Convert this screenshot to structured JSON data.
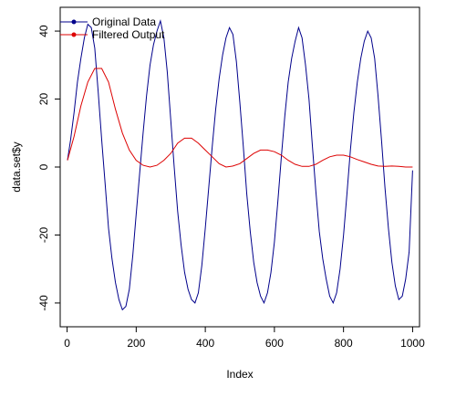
{
  "chart_data": {
    "type": "line",
    "title": "",
    "xlabel": "Index",
    "ylabel": "data.set$y",
    "xlim": [
      -20,
      1020
    ],
    "ylim": [
      -47,
      47
    ],
    "x_ticks": [
      0,
      200,
      400,
      600,
      800,
      1000
    ],
    "y_ticks": [
      -40,
      -20,
      0,
      20,
      40
    ],
    "legend_position": "top-left",
    "grid": false,
    "series": [
      {
        "name": "Original Data",
        "color": "#00008B",
        "x": [
          1,
          10,
          20,
          30,
          40,
          50,
          60,
          70,
          80,
          90,
          100,
          110,
          120,
          130,
          140,
          150,
          160,
          170,
          180,
          190,
          200,
          210,
          220,
          230,
          240,
          250,
          260,
          270,
          280,
          290,
          300,
          310,
          320,
          330,
          340,
          350,
          360,
          370,
          380,
          390,
          400,
          410,
          420,
          430,
          440,
          450,
          460,
          470,
          480,
          490,
          500,
          510,
          520,
          530,
          540,
          550,
          560,
          570,
          580,
          590,
          600,
          610,
          620,
          630,
          640,
          650,
          660,
          670,
          680,
          690,
          700,
          710,
          720,
          730,
          740,
          750,
          760,
          770,
          780,
          790,
          800,
          810,
          820,
          830,
          840,
          850,
          860,
          870,
          880,
          890,
          900,
          910,
          920,
          930,
          940,
          950,
          960,
          970,
          980,
          990,
          1000
        ],
        "values": [
          2,
          8,
          16,
          25,
          32,
          38,
          42,
          41,
          35,
          22,
          8,
          -5,
          -18,
          -27,
          -34,
          -39,
          -42,
          -41,
          -36,
          -26,
          -14,
          -2,
          10,
          21,
          30,
          36,
          40,
          43,
          38,
          28,
          14,
          0,
          -13,
          -23,
          -31,
          -36,
          -39,
          -40,
          -37,
          -29,
          -18,
          -6,
          6,
          17,
          26,
          33,
          38,
          41,
          39,
          31,
          19,
          6,
          -8,
          -19,
          -28,
          -34,
          -38,
          -40,
          -37,
          -31,
          -22,
          -10,
          3,
          15,
          25,
          32,
          37,
          41,
          38,
          30,
          20,
          6,
          -7,
          -19,
          -27,
          -33,
          -38,
          -40,
          -37,
          -30,
          -20,
          -8,
          5,
          16,
          25,
          32,
          37,
          40,
          38,
          32,
          21,
          8,
          -6,
          -18,
          -28,
          -35,
          -39,
          -38,
          -33,
          -25,
          -1
        ]
      },
      {
        "name": "Filtered Output",
        "color": "#DD0000",
        "x": [
          1,
          20,
          40,
          60,
          80,
          100,
          120,
          140,
          160,
          180,
          200,
          220,
          240,
          260,
          280,
          300,
          320,
          340,
          360,
          380,
          400,
          420,
          440,
          460,
          480,
          500,
          520,
          540,
          560,
          580,
          600,
          620,
          640,
          660,
          680,
          700,
          720,
          740,
          760,
          780,
          800,
          820,
          840,
          860,
          880,
          900,
          920,
          940,
          960,
          980,
          1000
        ],
        "values": [
          2,
          9,
          18,
          25,
          29,
          29,
          25,
          17,
          10,
          5,
          2,
          0.5,
          0,
          0.5,
          2,
          4,
          7,
          8.5,
          8.5,
          7,
          5,
          3,
          1,
          0,
          0.3,
          1,
          2.5,
          4,
          5,
          5,
          4.5,
          3.5,
          2,
          0.8,
          0.2,
          0.2,
          0.8,
          2,
          3,
          3.5,
          3.5,
          3,
          2.2,
          1.5,
          0.8,
          0.3,
          0.2,
          0.3,
          0.2,
          0,
          0
        ]
      }
    ]
  }
}
